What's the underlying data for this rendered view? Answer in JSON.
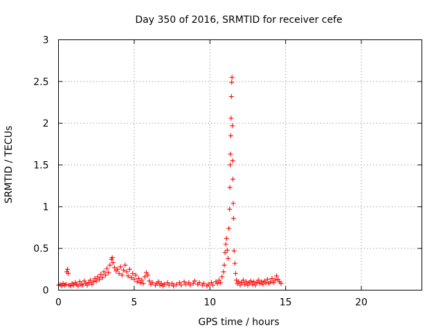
{
  "chart_data": {
    "type": "scatter",
    "title": "Day 350 of 2016, SRMTID for receiver cefe",
    "xlabel": "GPS time / hours",
    "ylabel": "SRMTID / TECUs",
    "xlim": [
      0,
      24
    ],
    "ylim": [
      0,
      3
    ],
    "xticks": [
      0,
      5,
      10,
      15,
      20
    ],
    "yticks": [
      0,
      0.5,
      1,
      1.5,
      2,
      2.5,
      3
    ],
    "marker": "+",
    "color": "#ff0000",
    "grid": true,
    "series": [
      {
        "name": "SRMTID",
        "points": [
          [
            0.0,
            0.06
          ],
          [
            0.1,
            0.07
          ],
          [
            0.2,
            0.05
          ],
          [
            0.3,
            0.08
          ],
          [
            0.4,
            0.06
          ],
          [
            0.5,
            0.07
          ],
          [
            0.55,
            0.22
          ],
          [
            0.6,
            0.25
          ],
          [
            0.65,
            0.2
          ],
          [
            0.7,
            0.06
          ],
          [
            0.8,
            0.05
          ],
          [
            0.9,
            0.08
          ],
          [
            1.0,
            0.06
          ],
          [
            1.1,
            0.09
          ],
          [
            1.2,
            0.07
          ],
          [
            1.3,
            0.05
          ],
          [
            1.4,
            0.1
          ],
          [
            1.5,
            0.07
          ],
          [
            1.6,
            0.06
          ],
          [
            1.7,
            0.11
          ],
          [
            1.8,
            0.08
          ],
          [
            1.9,
            0.06
          ],
          [
            2.0,
            0.09
          ],
          [
            2.1,
            0.12
          ],
          [
            2.2,
            0.07
          ],
          [
            2.3,
            0.1
          ],
          [
            2.4,
            0.14
          ],
          [
            2.5,
            0.11
          ],
          [
            2.6,
            0.16
          ],
          [
            2.7,
            0.13
          ],
          [
            2.8,
            0.19
          ],
          [
            2.9,
            0.15
          ],
          [
            3.0,
            0.22
          ],
          [
            3.1,
            0.18
          ],
          [
            3.2,
            0.26
          ],
          [
            3.3,
            0.21
          ],
          [
            3.4,
            0.3
          ],
          [
            3.5,
            0.37
          ],
          [
            3.55,
            0.39
          ],
          [
            3.6,
            0.33
          ],
          [
            3.7,
            0.27
          ],
          [
            3.8,
            0.23
          ],
          [
            3.9,
            0.25
          ],
          [
            4.0,
            0.2
          ],
          [
            4.1,
            0.28
          ],
          [
            4.2,
            0.18
          ],
          [
            4.3,
            0.24
          ],
          [
            4.4,
            0.3
          ],
          [
            4.5,
            0.22
          ],
          [
            4.6,
            0.17
          ],
          [
            4.7,
            0.25
          ],
          [
            4.8,
            0.15
          ],
          [
            4.9,
            0.2
          ],
          [
            5.0,
            0.13
          ],
          [
            5.1,
            0.18
          ],
          [
            5.2,
            0.1
          ],
          [
            5.3,
            0.14
          ],
          [
            5.4,
            0.09
          ],
          [
            5.5,
            0.12
          ],
          [
            5.6,
            0.08
          ],
          [
            5.7,
            0.16
          ],
          [
            5.8,
            0.21
          ],
          [
            5.9,
            0.18
          ],
          [
            6.0,
            0.11
          ],
          [
            6.1,
            0.07
          ],
          [
            6.2,
            0.09
          ],
          [
            6.4,
            0.06
          ],
          [
            6.5,
            0.08
          ],
          [
            6.6,
            0.1
          ],
          [
            6.7,
            0.06
          ],
          [
            6.8,
            0.08
          ],
          [
            6.9,
            0.05
          ],
          [
            7.0,
            0.07
          ],
          [
            7.2,
            0.09
          ],
          [
            7.3,
            0.06
          ],
          [
            7.5,
            0.08
          ],
          [
            7.6,
            0.05
          ],
          [
            7.8,
            0.07
          ],
          [
            8.0,
            0.09
          ],
          [
            8.1,
            0.06
          ],
          [
            8.3,
            0.1
          ],
          [
            8.4,
            0.07
          ],
          [
            8.6,
            0.09
          ],
          [
            8.7,
            0.06
          ],
          [
            8.9,
            0.08
          ],
          [
            9.0,
            0.11
          ],
          [
            9.2,
            0.07
          ],
          [
            9.3,
            0.09
          ],
          [
            9.5,
            0.06
          ],
          [
            9.6,
            0.08
          ],
          [
            9.8,
            0.05
          ],
          [
            9.9,
            0.07
          ],
          [
            10.1,
            0.09
          ],
          [
            10.2,
            0.06
          ],
          [
            10.4,
            0.1
          ],
          [
            10.5,
            0.08
          ],
          [
            10.6,
            0.12
          ],
          [
            10.7,
            0.09
          ],
          [
            10.8,
            0.16
          ],
          [
            10.9,
            0.22
          ],
          [
            10.95,
            0.3
          ],
          [
            11.0,
            0.45
          ],
          [
            11.05,
            0.55
          ],
          [
            11.1,
            0.62
          ],
          [
            11.15,
            0.48
          ],
          [
            11.2,
            0.38
          ],
          [
            11.25,
            0.74
          ],
          [
            11.3,
            0.97
          ],
          [
            11.32,
            1.23
          ],
          [
            11.34,
            1.5
          ],
          [
            11.36,
            1.63
          ],
          [
            11.38,
            1.85
          ],
          [
            11.4,
            2.06
          ],
          [
            11.42,
            2.32
          ],
          [
            11.44,
            2.49
          ],
          [
            11.46,
            2.55
          ],
          [
            11.48,
            1.97
          ],
          [
            11.5,
            1.55
          ],
          [
            11.52,
            1.33
          ],
          [
            11.54,
            1.04
          ],
          [
            11.56,
            0.86
          ],
          [
            11.6,
            0.47
          ],
          [
            11.65,
            0.32
          ],
          [
            11.7,
            0.2
          ],
          [
            11.75,
            0.12
          ],
          [
            11.8,
            0.08
          ],
          [
            11.9,
            0.1
          ],
          [
            12.0,
            0.06
          ],
          [
            12.1,
            0.09
          ],
          [
            12.2,
            0.12
          ],
          [
            12.3,
            0.07
          ],
          [
            12.4,
            0.1
          ],
          [
            12.5,
            0.06
          ],
          [
            12.6,
            0.09
          ],
          [
            12.7,
            0.11
          ],
          [
            12.8,
            0.07
          ],
          [
            12.9,
            0.1
          ],
          [
            13.0,
            0.06
          ],
          [
            13.1,
            0.09
          ],
          [
            13.2,
            0.12
          ],
          [
            13.3,
            0.08
          ],
          [
            13.4,
            0.1
          ],
          [
            13.5,
            0.07
          ],
          [
            13.6,
            0.11
          ],
          [
            13.7,
            0.09
          ],
          [
            13.8,
            0.13
          ],
          [
            13.9,
            0.08
          ],
          [
            14.0,
            0.1
          ],
          [
            14.1,
            0.14
          ],
          [
            14.2,
            0.09
          ],
          [
            14.3,
            0.12
          ],
          [
            14.4,
            0.17
          ],
          [
            14.5,
            0.13
          ],
          [
            14.6,
            0.1
          ],
          [
            14.7,
            0.08
          ]
        ]
      }
    ]
  }
}
